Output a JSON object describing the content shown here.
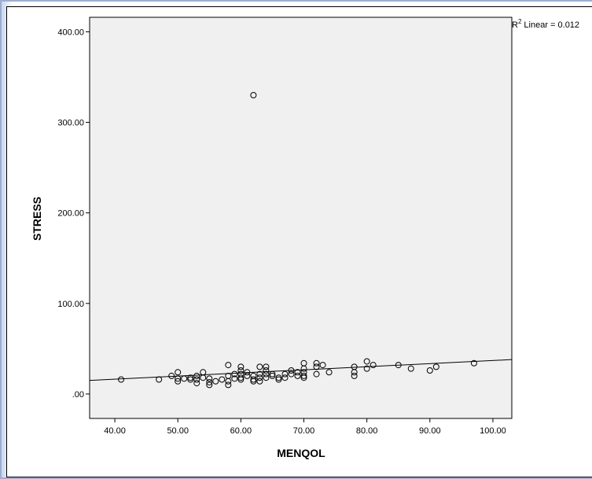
{
  "chart_data": {
    "type": "scatter",
    "xlabel": "MENQOL",
    "ylabel": "STRESS",
    "xlim": [
      36,
      103
    ],
    "ylim": [
      -27,
      416
    ],
    "x_ticks": [
      "40.00",
      "50.00",
      "60.00",
      "70.00",
      "80.00",
      "90.00",
      "100.00"
    ],
    "x_tick_values": [
      40,
      50,
      60,
      70,
      80,
      90,
      100
    ],
    "y_ticks": [
      ".00",
      "100.00",
      "200.00",
      "300.00",
      "400.00"
    ],
    "y_tick_values": [
      0,
      100,
      200,
      300,
      400
    ],
    "r2_label": "Linear = 0.012",
    "r2_prefix": "R",
    "r2_sup": "2",
    "fit_line": {
      "x": [
        36,
        103
      ],
      "y": [
        15,
        38
      ]
    },
    "plot_background": "#f0f0f0",
    "marker_color": "#000000",
    "points": [
      [
        41,
        16
      ],
      [
        47,
        16
      ],
      [
        49,
        20
      ],
      [
        50,
        24
      ],
      [
        50,
        17
      ],
      [
        50,
        14
      ],
      [
        51,
        17
      ],
      [
        52,
        16
      ],
      [
        52,
        18
      ],
      [
        53,
        20
      ],
      [
        53,
        16
      ],
      [
        53,
        12
      ],
      [
        54,
        24
      ],
      [
        54,
        18
      ],
      [
        55,
        17
      ],
      [
        55,
        13
      ],
      [
        55,
        10
      ],
      [
        56,
        14
      ],
      [
        57,
        16
      ],
      [
        58,
        32
      ],
      [
        58,
        20
      ],
      [
        58,
        14
      ],
      [
        58,
        10
      ],
      [
        59,
        17
      ],
      [
        59,
        22
      ],
      [
        60,
        30
      ],
      [
        60,
        26
      ],
      [
        60,
        22
      ],
      [
        60,
        18
      ],
      [
        60,
        16
      ],
      [
        61,
        20
      ],
      [
        61,
        24
      ],
      [
        62,
        20
      ],
      [
        62,
        16
      ],
      [
        62,
        14
      ],
      [
        62,
        330
      ],
      [
        63,
        30
      ],
      [
        63,
        22
      ],
      [
        63,
        18
      ],
      [
        63,
        14
      ],
      [
        64,
        30
      ],
      [
        64,
        26
      ],
      [
        64,
        22
      ],
      [
        64,
        18
      ],
      [
        65,
        22
      ],
      [
        65,
        20
      ],
      [
        66,
        18
      ],
      [
        66,
        16
      ],
      [
        67,
        22
      ],
      [
        67,
        18
      ],
      [
        68,
        26
      ],
      [
        68,
        22
      ],
      [
        69,
        24
      ],
      [
        69,
        20
      ],
      [
        70,
        34
      ],
      [
        70,
        28
      ],
      [
        70,
        24
      ],
      [
        70,
        20
      ],
      [
        70,
        18
      ],
      [
        72,
        34
      ],
      [
        72,
        30
      ],
      [
        72,
        22
      ],
      [
        73,
        32
      ],
      [
        74,
        24
      ],
      [
        78,
        30
      ],
      [
        78,
        24
      ],
      [
        78,
        20
      ],
      [
        80,
        36
      ],
      [
        80,
        28
      ],
      [
        81,
        32
      ],
      [
        85,
        32
      ],
      [
        87,
        28
      ],
      [
        90,
        26
      ],
      [
        91,
        30
      ],
      [
        97,
        34
      ]
    ]
  }
}
